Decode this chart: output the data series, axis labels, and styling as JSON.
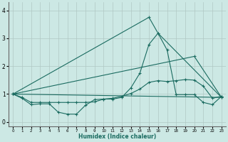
{
  "xlabel": "Humidex (Indice chaleur)",
  "bg_color": "#cce8e4",
  "line_color": "#1a6b60",
  "grid_color": "#b0c8c4",
  "xlim": [
    -0.5,
    23.5
  ],
  "ylim": [
    -0.15,
    4.3
  ],
  "yticks": [
    0,
    1,
    2,
    3,
    4
  ],
  "xticks": [
    0,
    1,
    2,
    3,
    4,
    5,
    6,
    7,
    8,
    9,
    10,
    11,
    12,
    13,
    14,
    15,
    16,
    17,
    18,
    19,
    20,
    21,
    22,
    23
  ],
  "line1_x": [
    0,
    1,
    2,
    3,
    4,
    5,
    6,
    7,
    8,
    9,
    10,
    11,
    12,
    13,
    14,
    15,
    16,
    17,
    18,
    19,
    20,
    21,
    22,
    23
  ],
  "line1_y": [
    1.0,
    0.85,
    0.62,
    0.65,
    0.65,
    0.35,
    0.28,
    0.28,
    0.6,
    0.8,
    0.82,
    0.82,
    0.88,
    1.22,
    1.75,
    2.78,
    3.18,
    2.58,
    0.98,
    0.98,
    0.98,
    0.7,
    0.62,
    0.92
  ],
  "line2_x": [
    0,
    1,
    2,
    3,
    4,
    5,
    6,
    7,
    8,
    9,
    10,
    11,
    12,
    13,
    14,
    15,
    16,
    17,
    18,
    19,
    20,
    21,
    22,
    23
  ],
  "line2_y": [
    1.0,
    0.88,
    0.7,
    0.7,
    0.7,
    0.7,
    0.7,
    0.7,
    0.7,
    0.72,
    0.82,
    0.85,
    0.92,
    1.02,
    1.18,
    1.42,
    1.48,
    1.45,
    1.48,
    1.52,
    1.5,
    1.28,
    0.85,
    0.92
  ],
  "line3_x": [
    0,
    23
  ],
  "line3_y": [
    1.0,
    0.88
  ],
  "line4_x": [
    0,
    20,
    23
  ],
  "line4_y": [
    1.0,
    2.35,
    0.88
  ],
  "line5_x": [
    0,
    15,
    16,
    23
  ],
  "line5_y": [
    1.0,
    3.75,
    3.18,
    0.88
  ]
}
